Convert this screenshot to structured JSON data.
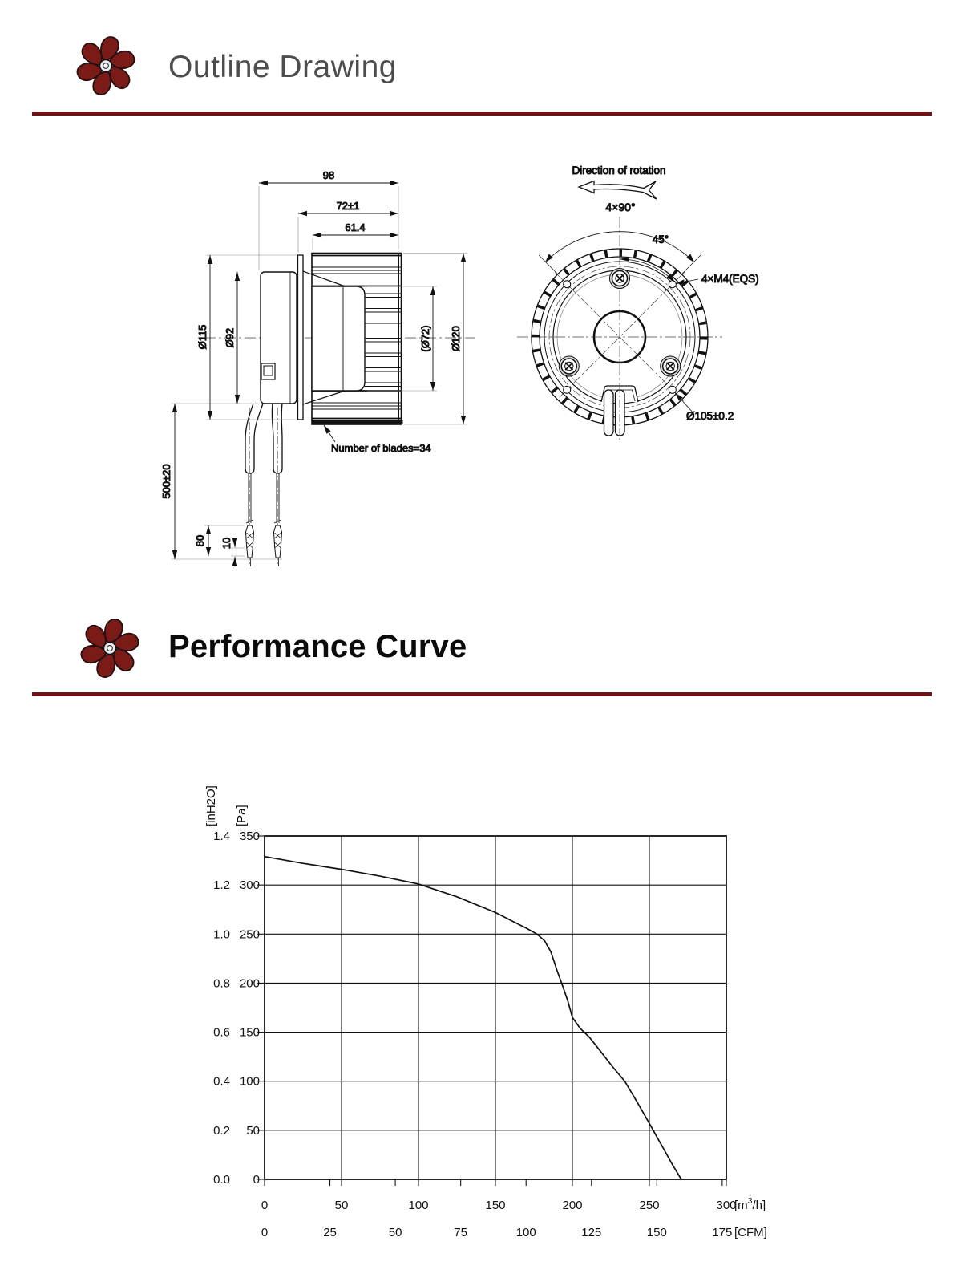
{
  "accent_color": "#6d1316",
  "fan_icon_color": "#7b1b18",
  "sections": {
    "outline": {
      "title": "Outline Drawing"
    },
    "performance": {
      "title": "Performance Curve"
    }
  },
  "outline_drawing": {
    "side_view": {
      "dim_total_depth": "98",
      "dim_flange_depth": "72±1",
      "dim_impeller_width": "61.4",
      "dim_flange_dia": "Ø115",
      "dim_motor_dia": "Ø92",
      "dim_hub_dia": "(Ø72)",
      "dim_impeller_dia": "Ø120",
      "dim_lead_length": "500±20",
      "dim_strip_80": "80",
      "dim_strip_10": "10",
      "blades_note": "Number of blades=34"
    },
    "front_view": {
      "rotation_label": "Direction of rotation",
      "hole_pattern": "4×90°",
      "hole_angle": "45°",
      "screw_spec": "4×M4(EQS)",
      "bolt_circle_dia": "Ø105±0.2"
    }
  },
  "chart_data": {
    "type": "line",
    "grid": true,
    "x_axes": [
      {
        "unit_prefix": "[m",
        "unit_sup": "3",
        "unit_suffix": "/h]",
        "ticks": [
          0,
          50,
          100,
          150,
          200,
          250,
          300
        ],
        "range": [
          0,
          300
        ]
      },
      {
        "unit": "[CFM]",
        "ticks": [
          0,
          25,
          50,
          75,
          100,
          125,
          150,
          175
        ],
        "to_m3h_factor": 1.699
      }
    ],
    "y_axes": [
      {
        "unit": "[inH2O]",
        "ticks": [
          "0.0",
          "0.2",
          "0.4",
          "0.6",
          "0.8",
          "1.0",
          "1.2",
          "1.4"
        ],
        "range": [
          0,
          1.4
        ]
      },
      {
        "unit": "[Pa]",
        "ticks": [
          "0",
          "50",
          "100",
          "150",
          "200",
          "250",
          "300",
          "350"
        ],
        "range": [
          0,
          350
        ]
      }
    ],
    "series": [
      {
        "name": "static-pressure-vs-airflow",
        "x_unit": "m3/h",
        "y_unit": "Pa",
        "points": [
          [
            0,
            329
          ],
          [
            25,
            322
          ],
          [
            50,
            316
          ],
          [
            75,
            309
          ],
          [
            100,
            301
          ],
          [
            125,
            288
          ],
          [
            150,
            272
          ],
          [
            160,
            264
          ],
          [
            170,
            256
          ],
          [
            177,
            250
          ],
          [
            182,
            243
          ],
          [
            186,
            232
          ],
          [
            190,
            213
          ],
          [
            193,
            200
          ],
          [
            197,
            182
          ],
          [
            200,
            165
          ],
          [
            205,
            154
          ],
          [
            211,
            145
          ],
          [
            218,
            131
          ],
          [
            226,
            115
          ],
          [
            234,
            100
          ],
          [
            242,
            79
          ],
          [
            250,
            57
          ],
          [
            255,
            43
          ],
          [
            260,
            29
          ],
          [
            265,
            15
          ],
          [
            270,
            2
          ],
          [
            271,
            0
          ]
        ]
      }
    ]
  }
}
